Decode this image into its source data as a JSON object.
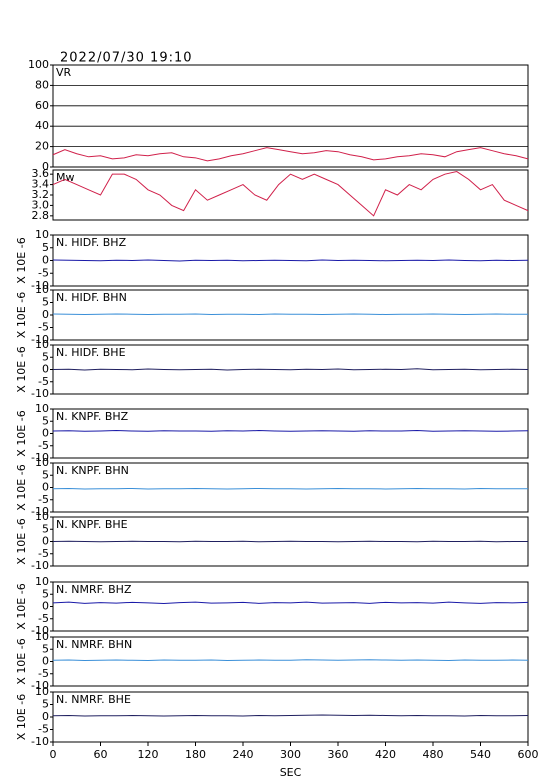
{
  "chart_data": [
    {
      "type": "line",
      "title": "2022/07/30 19:10",
      "xlim": [
        0,
        600
      ],
      "ylim": [
        0,
        100
      ],
      "yticks": [
        0,
        20,
        40,
        60,
        80,
        100
      ],
      "grid": true,
      "x": [
        0,
        15,
        30,
        45,
        60,
        75,
        90,
        105,
        120,
        135,
        150,
        165,
        180,
        195,
        210,
        225,
        240,
        255,
        270,
        285,
        300,
        315,
        330,
        345,
        360,
        375,
        390,
        405,
        420,
        435,
        450,
        465,
        480,
        495,
        510,
        525,
        540,
        555,
        570,
        585,
        600
      ],
      "series": [
        {
          "name": "VR",
          "color": "#d0204a",
          "values": [
            12,
            17,
            13,
            10,
            11,
            8,
            9,
            12,
            11,
            13,
            14,
            10,
            9,
            6,
            8,
            11,
            13,
            16,
            19,
            17,
            15,
            13,
            14,
            16,
            15,
            12,
            10,
            7,
            8,
            10,
            11,
            13,
            12,
            10,
            15,
            17,
            19,
            16,
            13,
            11,
            8
          ]
        }
      ]
    },
    {
      "type": "line",
      "xlim": [
        0,
        600
      ],
      "ylim": [
        2.72,
        3.68
      ],
      "yticks": [
        {
          "value": 2.8,
          "label": "2.8"
        },
        {
          "value": 3.0,
          "label": "3.0"
        },
        {
          "value": 3.2,
          "label": "3.2"
        },
        {
          "value": 3.4,
          "label": "3.4"
        },
        {
          "value": 3.6,
          "label": "3.6"
        }
      ],
      "grid": false,
      "x": [
        0,
        15,
        30,
        45,
        60,
        75,
        90,
        105,
        120,
        135,
        150,
        165,
        180,
        195,
        210,
        225,
        240,
        255,
        270,
        285,
        300,
        315,
        330,
        345,
        360,
        375,
        390,
        405,
        420,
        435,
        450,
        465,
        480,
        495,
        510,
        525,
        540,
        555,
        570,
        585,
        600
      ],
      "series": [
        {
          "name": "Mw",
          "color": "#d0204a",
          "values": [
            3.4,
            3.5,
            3.4,
            3.3,
            3.2,
            3.6,
            3.6,
            3.5,
            3.3,
            3.2,
            3.0,
            2.9,
            3.3,
            3.1,
            3.2,
            3.3,
            3.4,
            3.2,
            3.1,
            3.4,
            3.6,
            3.5,
            3.6,
            3.5,
            3.4,
            3.2,
            3.0,
            2.8,
            3.3,
            3.2,
            3.4,
            3.3,
            3.5,
            3.6,
            3.65,
            3.5,
            3.3,
            3.4,
            3.1,
            3.0,
            2.9
          ]
        }
      ]
    },
    {
      "type": "line",
      "ylabel": "X 10E -6",
      "xlim": [
        0,
        600
      ],
      "ylim": [
        -10,
        10
      ],
      "yticks": [
        -10,
        -5,
        0,
        5,
        10
      ],
      "grid": false,
      "x": [
        0,
        20,
        40,
        60,
        80,
        100,
        120,
        140,
        160,
        180,
        200,
        220,
        240,
        260,
        280,
        300,
        320,
        340,
        360,
        380,
        400,
        420,
        440,
        460,
        480,
        500,
        520,
        540,
        560,
        580,
        600
      ],
      "series": [
        {
          "name": "N. HIDF. BHZ",
          "color": "#1a1aa8",
          "values": [
            0.2,
            0.1,
            0,
            -0.1,
            0.1,
            0,
            0.2,
            0,
            -0.2,
            0.1,
            0,
            0.1,
            -0.1,
            0,
            0.1,
            0,
            -0.1,
            0.2,
            0,
            0.1,
            0,
            -0.1,
            0,
            0.1,
            0,
            0.2,
            0,
            -0.1,
            0.1,
            0,
            0.1
          ]
        }
      ]
    },
    {
      "type": "line",
      "ylabel": "X 10E -6",
      "xlim": [
        0,
        600
      ],
      "ylim": [
        -10,
        10
      ],
      "yticks": [
        -10,
        -5,
        0,
        5,
        10
      ],
      "grid": false,
      "x": [
        0,
        20,
        40,
        60,
        80,
        100,
        120,
        140,
        160,
        180,
        200,
        220,
        240,
        260,
        280,
        300,
        320,
        340,
        360,
        380,
        400,
        420,
        440,
        460,
        480,
        500,
        520,
        540,
        560,
        580,
        600
      ],
      "series": [
        {
          "name": "N. HIDF. BHN",
          "color": "#3a8fd8",
          "values": [
            0.4,
            0.3,
            0.2,
            0.3,
            0.4,
            0.3,
            0.2,
            0.3,
            0.3,
            0.4,
            0.2,
            0.3,
            0.3,
            0.2,
            0.4,
            0.3,
            0.3,
            0.2,
            0.3,
            0.4,
            0.3,
            0.2,
            0.3,
            0.3,
            0.4,
            0.3,
            0.2,
            0.3,
            0.4,
            0.3,
            0.3
          ]
        }
      ]
    },
    {
      "type": "line",
      "ylabel": "X 10E -6",
      "xlim": [
        0,
        600
      ],
      "ylim": [
        -10,
        10
      ],
      "yticks": [
        -10,
        -5,
        0,
        5,
        10
      ],
      "grid": false,
      "x": [
        0,
        20,
        40,
        60,
        80,
        100,
        120,
        140,
        160,
        180,
        200,
        220,
        240,
        260,
        280,
        300,
        320,
        340,
        360,
        380,
        400,
        420,
        440,
        460,
        480,
        500,
        520,
        540,
        560,
        580,
        600
      ],
      "series": [
        {
          "name": "N. HIDF. BHE",
          "color": "#202060",
          "values": [
            0,
            0.1,
            -0.2,
            0.1,
            0,
            -0.1,
            0.2,
            0,
            -0.1,
            0,
            0.1,
            -0.2,
            0,
            0.1,
            0,
            -0.1,
            0.1,
            0,
            0.2,
            -0.1,
            0,
            0.1,
            0,
            0.3,
            -0.1,
            0,
            0.1,
            -0.1,
            0,
            0.1,
            0
          ]
        }
      ]
    },
    {
      "type": "line",
      "ylabel": "X 10E -6",
      "xlim": [
        0,
        600
      ],
      "ylim": [
        -10,
        10
      ],
      "yticks": [
        -10,
        -5,
        0,
        5,
        10
      ],
      "grid": false,
      "x": [
        0,
        20,
        40,
        60,
        80,
        100,
        120,
        140,
        160,
        180,
        200,
        220,
        240,
        260,
        280,
        300,
        320,
        340,
        360,
        380,
        400,
        420,
        440,
        460,
        480,
        500,
        520,
        540,
        560,
        580,
        600
      ],
      "series": [
        {
          "name": "N. KNPF. BHZ",
          "color": "#1a1aa8",
          "values": [
            1.0,
            1.1,
            0.9,
            1.0,
            1.2,
            1.0,
            0.9,
            1.1,
            1.0,
            1.0,
            0.9,
            1.1,
            1.0,
            1.2,
            1.0,
            0.9,
            1.0,
            1.1,
            1.0,
            0.9,
            1.1,
            1.0,
            1.0,
            1.2,
            0.9,
            1.0,
            1.1,
            1.0,
            0.9,
            1.0,
            1.1
          ]
        }
      ]
    },
    {
      "type": "line",
      "ylabel": "X 10E -6",
      "xlim": [
        0,
        600
      ],
      "ylim": [
        -10,
        10
      ],
      "yticks": [
        -10,
        -5,
        0,
        5,
        10
      ],
      "grid": false,
      "x": [
        0,
        20,
        40,
        60,
        80,
        100,
        120,
        140,
        160,
        180,
        200,
        220,
        240,
        260,
        280,
        300,
        320,
        340,
        360,
        380,
        400,
        420,
        440,
        460,
        480,
        500,
        520,
        540,
        560,
        580,
        600
      ],
      "series": [
        {
          "name": "N. KNPF. BHN",
          "color": "#3a8fd8",
          "values": [
            -0.5,
            -0.4,
            -0.6,
            -0.5,
            -0.5,
            -0.4,
            -0.6,
            -0.5,
            -0.5,
            -0.4,
            -0.5,
            -0.6,
            -0.5,
            -0.4,
            -0.5,
            -0.5,
            -0.6,
            -0.5,
            -0.4,
            -0.5,
            -0.5,
            -0.6,
            -0.5,
            -0.4,
            -0.5,
            -0.5,
            -0.6,
            -0.4,
            -0.5,
            -0.5,
            -0.5
          ]
        }
      ]
    },
    {
      "type": "line",
      "ylabel": "X 10E -6",
      "xlim": [
        0,
        600
      ],
      "ylim": [
        -10,
        10
      ],
      "yticks": [
        -10,
        -5,
        0,
        5,
        10
      ],
      "grid": false,
      "x": [
        0,
        20,
        40,
        60,
        80,
        100,
        120,
        140,
        160,
        180,
        200,
        220,
        240,
        260,
        280,
        300,
        320,
        340,
        360,
        380,
        400,
        420,
        440,
        460,
        480,
        500,
        520,
        540,
        560,
        580,
        600
      ],
      "series": [
        {
          "name": "N. KNPF. BHE",
          "color": "#202060",
          "values": [
            0,
            0.1,
            0,
            -0.1,
            0,
            0.1,
            0,
            0,
            -0.1,
            0.1,
            0,
            0,
            0.1,
            -0.1,
            0,
            0.1,
            0,
            0,
            -0.1,
            0,
            0.1,
            0,
            0,
            -0.1,
            0.1,
            0,
            0,
            0.1,
            -0.1,
            0,
            0
          ]
        }
      ]
    },
    {
      "type": "line",
      "ylabel": "X 10E -6",
      "xlim": [
        0,
        600
      ],
      "ylim": [
        -10,
        10
      ],
      "yticks": [
        -10,
        -5,
        0,
        5,
        10
      ],
      "grid": false,
      "x": [
        0,
        20,
        40,
        60,
        80,
        100,
        120,
        140,
        160,
        180,
        200,
        220,
        240,
        260,
        280,
        300,
        320,
        340,
        360,
        380,
        400,
        420,
        440,
        460,
        480,
        500,
        520,
        540,
        560,
        580,
        600
      ],
      "series": [
        {
          "name": "N. NMRF. BHZ",
          "color": "#1a1aa8",
          "values": [
            1.5,
            1.8,
            1.3,
            1.6,
            1.4,
            1.7,
            1.5,
            1.2,
            1.6,
            1.8,
            1.4,
            1.5,
            1.7,
            1.3,
            1.6,
            1.5,
            1.8,
            1.4,
            1.5,
            1.6,
            1.3,
            1.7,
            1.5,
            1.6,
            1.4,
            1.8,
            1.5,
            1.3,
            1.6,
            1.5,
            1.7
          ]
        }
      ]
    },
    {
      "type": "line",
      "ylabel": "X 10E -6",
      "xlim": [
        0,
        600
      ],
      "ylim": [
        -10,
        10
      ],
      "yticks": [
        -10,
        -5,
        0,
        5,
        10
      ],
      "grid": false,
      "x": [
        0,
        20,
        40,
        60,
        80,
        100,
        120,
        140,
        160,
        180,
        200,
        220,
        240,
        260,
        280,
        300,
        320,
        340,
        360,
        380,
        400,
        420,
        440,
        460,
        480,
        500,
        520,
        540,
        560,
        580,
        600
      ],
      "series": [
        {
          "name": "N. NMRF. BHN",
          "color": "#3a8fd8",
          "values": [
            0.5,
            0.6,
            0.4,
            0.5,
            0.6,
            0.5,
            0.4,
            0.6,
            0.5,
            0.5,
            0.6,
            0.4,
            0.5,
            0.6,
            0.5,
            0.5,
            0.7,
            0.6,
            0.5,
            0.6,
            0.7,
            0.6,
            0.5,
            0.6,
            0.5,
            0.4,
            0.6,
            0.5,
            0.5,
            0.6,
            0.5
          ]
        }
      ]
    },
    {
      "type": "line",
      "ylabel": "X 10E -6",
      "xlim": [
        0,
        600
      ],
      "ylim": [
        -10,
        10
      ],
      "yticks": [
        -10,
        -5,
        0,
        5,
        10
      ],
      "grid": false,
      "xlabel": "SEC",
      "xticks": [
        0,
        60,
        120,
        180,
        240,
        300,
        360,
        420,
        480,
        540,
        600
      ],
      "x": [
        0,
        20,
        40,
        60,
        80,
        100,
        120,
        140,
        160,
        180,
        200,
        220,
        240,
        260,
        280,
        300,
        320,
        340,
        360,
        380,
        400,
        420,
        440,
        460,
        480,
        500,
        520,
        540,
        560,
        580,
        600
      ],
      "series": [
        {
          "name": "N. NMRF. BHE",
          "color": "#202060",
          "values": [
            0.5,
            0.6,
            0.4,
            0.5,
            0.5,
            0.6,
            0.5,
            0.4,
            0.5,
            0.6,
            0.5,
            0.5,
            0.4,
            0.6,
            0.5,
            0.6,
            0.7,
            0.8,
            0.7,
            0.6,
            0.7,
            0.6,
            0.5,
            0.6,
            0.5,
            0.5,
            0.4,
            0.6,
            0.5,
            0.5,
            0.6
          ]
        }
      ]
    }
  ]
}
